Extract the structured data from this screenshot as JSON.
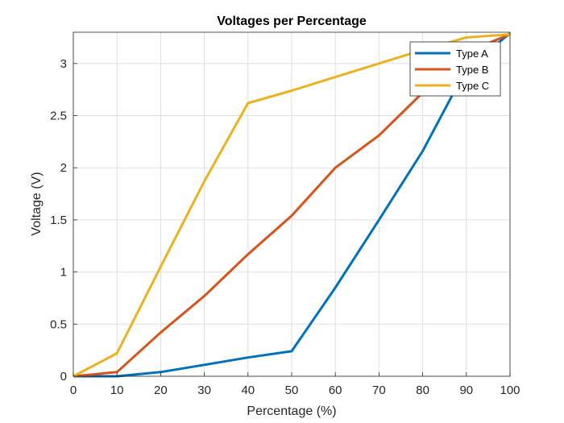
{
  "chart_data": {
    "type": "line",
    "title": "Voltages per Percentage",
    "xlabel": "Percentage (%)",
    "ylabel": "Voltage (V)",
    "xlim": [
      0,
      100
    ],
    "ylim": [
      0,
      3.3
    ],
    "xticks": [
      0,
      10,
      20,
      30,
      40,
      50,
      60,
      70,
      80,
      90,
      100
    ],
    "yticks": [
      0,
      0.5,
      1,
      1.5,
      2,
      2.5,
      3
    ],
    "ytick_labels": [
      "0",
      "0.5",
      "1",
      "1.5",
      "2",
      "2.5",
      "3"
    ],
    "grid": true,
    "legend_position": "top-right",
    "x": [
      0,
      10,
      20,
      30,
      40,
      50,
      60,
      70,
      80,
      90,
      100
    ],
    "series": [
      {
        "name": "Type A",
        "color": "#0072BD",
        "values": [
          0,
          0,
          0.04,
          0.11,
          0.18,
          0.24,
          0.85,
          1.5,
          2.16,
          2.95,
          3.29
        ]
      },
      {
        "name": "Type B",
        "color": "#D95319",
        "values": [
          0,
          0.04,
          0.42,
          0.77,
          1.17,
          1.54,
          2.0,
          2.31,
          2.72,
          3.11,
          3.28
        ]
      },
      {
        "name": "Type C",
        "color": "#EDB120",
        "values": [
          0,
          0.22,
          1.05,
          1.87,
          2.62,
          2.74,
          2.87,
          3.0,
          3.13,
          3.25,
          3.28
        ]
      }
    ]
  }
}
